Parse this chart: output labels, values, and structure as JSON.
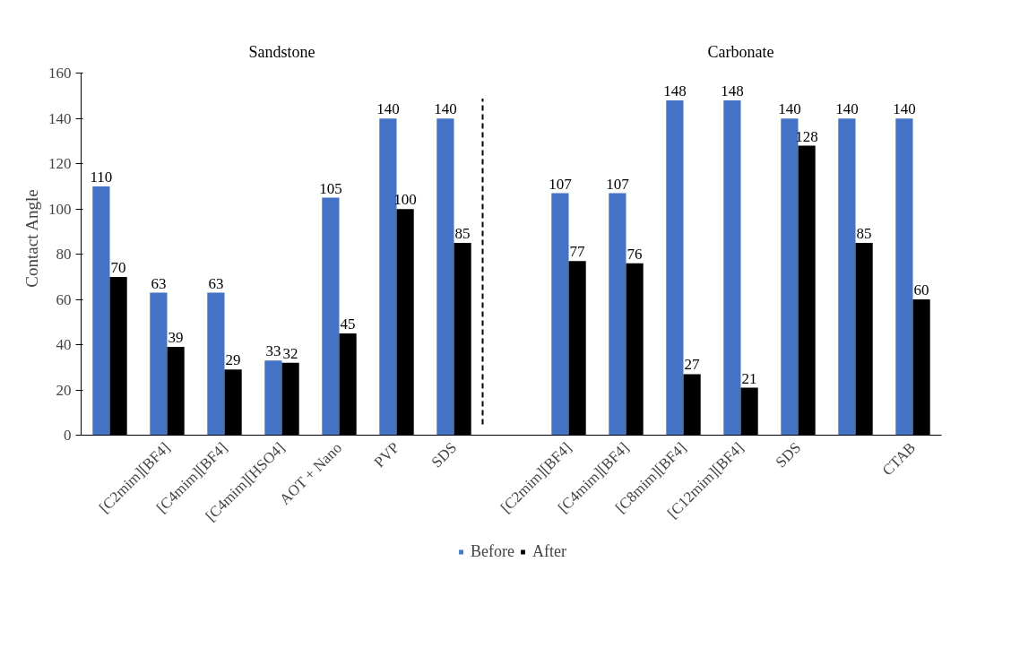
{
  "chart_data": {
    "type": "bar",
    "categories": [
      null,
      "[C2mim][BF4]",
      "[C4mim][BF4]",
      "[C4mim][HSO4]",
      "AOT + Nano",
      "PVP",
      "SDS",
      null,
      "[C2mim][BF4]",
      "[C4mim][BF4]",
      "[C8mim][BF4]",
      "[C12mim][BF4]",
      "SDS",
      null,
      "CTAB"
    ],
    "series": [
      {
        "name": "Before",
        "color": "#4472c4",
        "values": [
          110,
          63,
          63,
          33,
          105,
          140,
          140,
          null,
          107,
          107,
          148,
          148,
          140,
          140,
          140
        ]
      },
      {
        "name": "After",
        "color": "#000000",
        "values": [
          70,
          39,
          29,
          32,
          45,
          100,
          85,
          null,
          77,
          76,
          27,
          21,
          128,
          85,
          60
        ]
      }
    ],
    "ylabel": "Contact Angle",
    "ylim": [
      0,
      160
    ],
    "yticks": [
      0,
      20,
      40,
      60,
      80,
      100,
      120,
      140,
      160
    ],
    "annotations": [
      "Sandstone",
      "Carbonate"
    ],
    "data_labels": true,
    "grid": false,
    "legend": "bottom"
  }
}
